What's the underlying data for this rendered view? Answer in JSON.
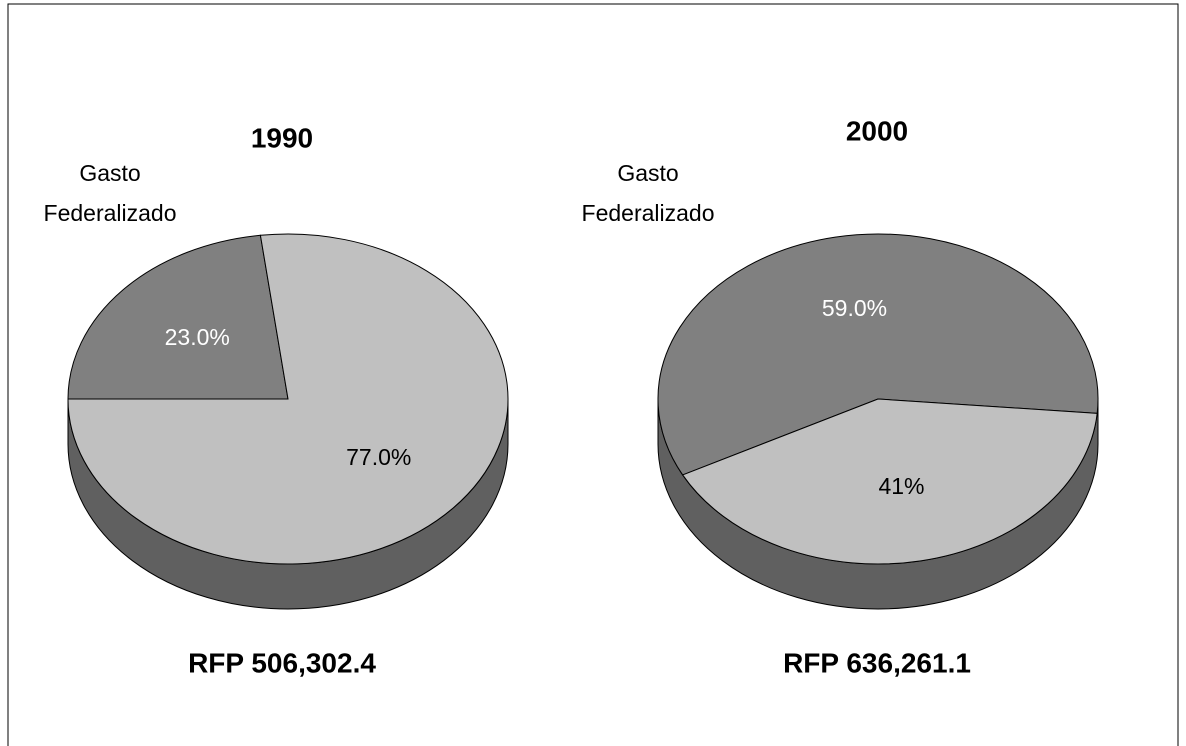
{
  "chart_data": [
    {
      "type": "pie",
      "title": "1990",
      "categories": [
        "Gasto Federalizado",
        null
      ],
      "values": [
        23.0,
        77.0
      ],
      "value_labels": [
        "23.0%",
        "77.0%"
      ],
      "colors": [
        "#808080",
        "#c0c0c0"
      ],
      "subtitle": "RFP 506,302.4"
    },
    {
      "type": "pie",
      "title": "2000",
      "categories": [
        "Gasto Federalizado",
        null
      ],
      "values": [
        59.0,
        41
      ],
      "value_labels": [
        "59.0%",
        "41%"
      ],
      "colors": [
        "#808080",
        "#c0c0c0"
      ],
      "subtitle": "RFP 636,261.1"
    }
  ]
}
